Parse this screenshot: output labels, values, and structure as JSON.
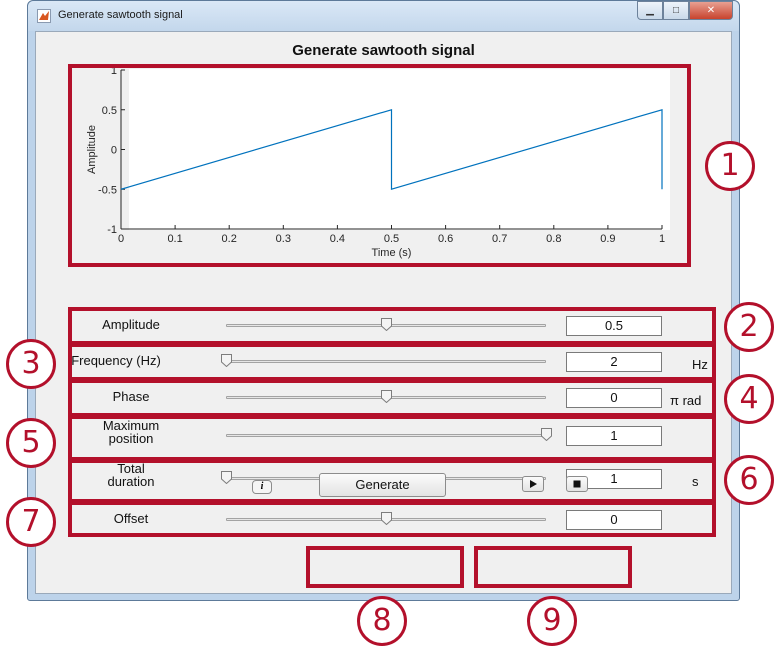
{
  "window": {
    "title": "Generate sawtooth signal",
    "minimize_glyph": "▁",
    "maximize_glyph": "□",
    "close_glyph": "✕"
  },
  "main_title": "Generate sawtooth signal",
  "chart_data": {
    "type": "line",
    "xlabel": "Time (s)",
    "ylabel": "Amplitude",
    "xlim": [
      0,
      1
    ],
    "ylim": [
      -1,
      1
    ],
    "xticks": [
      "0",
      "0.1",
      "0.2",
      "0.3",
      "0.4",
      "0.5",
      "0.6",
      "0.7",
      "0.8",
      "0.9",
      "1"
    ],
    "yticks": [
      "-1",
      "-0.5",
      "0",
      "0.5",
      "1"
    ],
    "series": [
      {
        "color": "#0072bd",
        "x": [
          0,
          0.5,
          0.5,
          1,
          1
        ],
        "y": [
          -0.5,
          0.5,
          -0.5,
          0.5,
          -0.5
        ]
      }
    ],
    "grid": false
  },
  "controls": [
    {
      "label": "Amplitude",
      "value": "0.5",
      "unit": "",
      "slider_fraction": 0.5
    },
    {
      "label": "Frequency (Hz)",
      "value": "2",
      "unit": "Hz",
      "slider_fraction": 0.0
    },
    {
      "label": "Phase",
      "value": "0",
      "unit": "π rad",
      "slider_fraction": 0.5
    },
    {
      "label": "Maximum\nposition",
      "value": "1",
      "unit": "",
      "slider_fraction": 1.0
    },
    {
      "label": "Total\nduration",
      "value": "1",
      "unit": "s",
      "slider_fraction": 0.0
    },
    {
      "label": "Offset",
      "value": "0",
      "unit": "",
      "slider_fraction": 0.5
    }
  ],
  "buttons": {
    "info": "i",
    "generate": "Generate",
    "play_icon": "play-icon",
    "stop_icon": "stop-icon"
  },
  "annotations": [
    "1",
    "2",
    "3",
    "4",
    "5",
    "6",
    "7",
    "8",
    "9"
  ],
  "colors": {
    "annotation": "#b3102b",
    "plot_line": "#0072bd",
    "window_frame": "#bdd3ea"
  }
}
